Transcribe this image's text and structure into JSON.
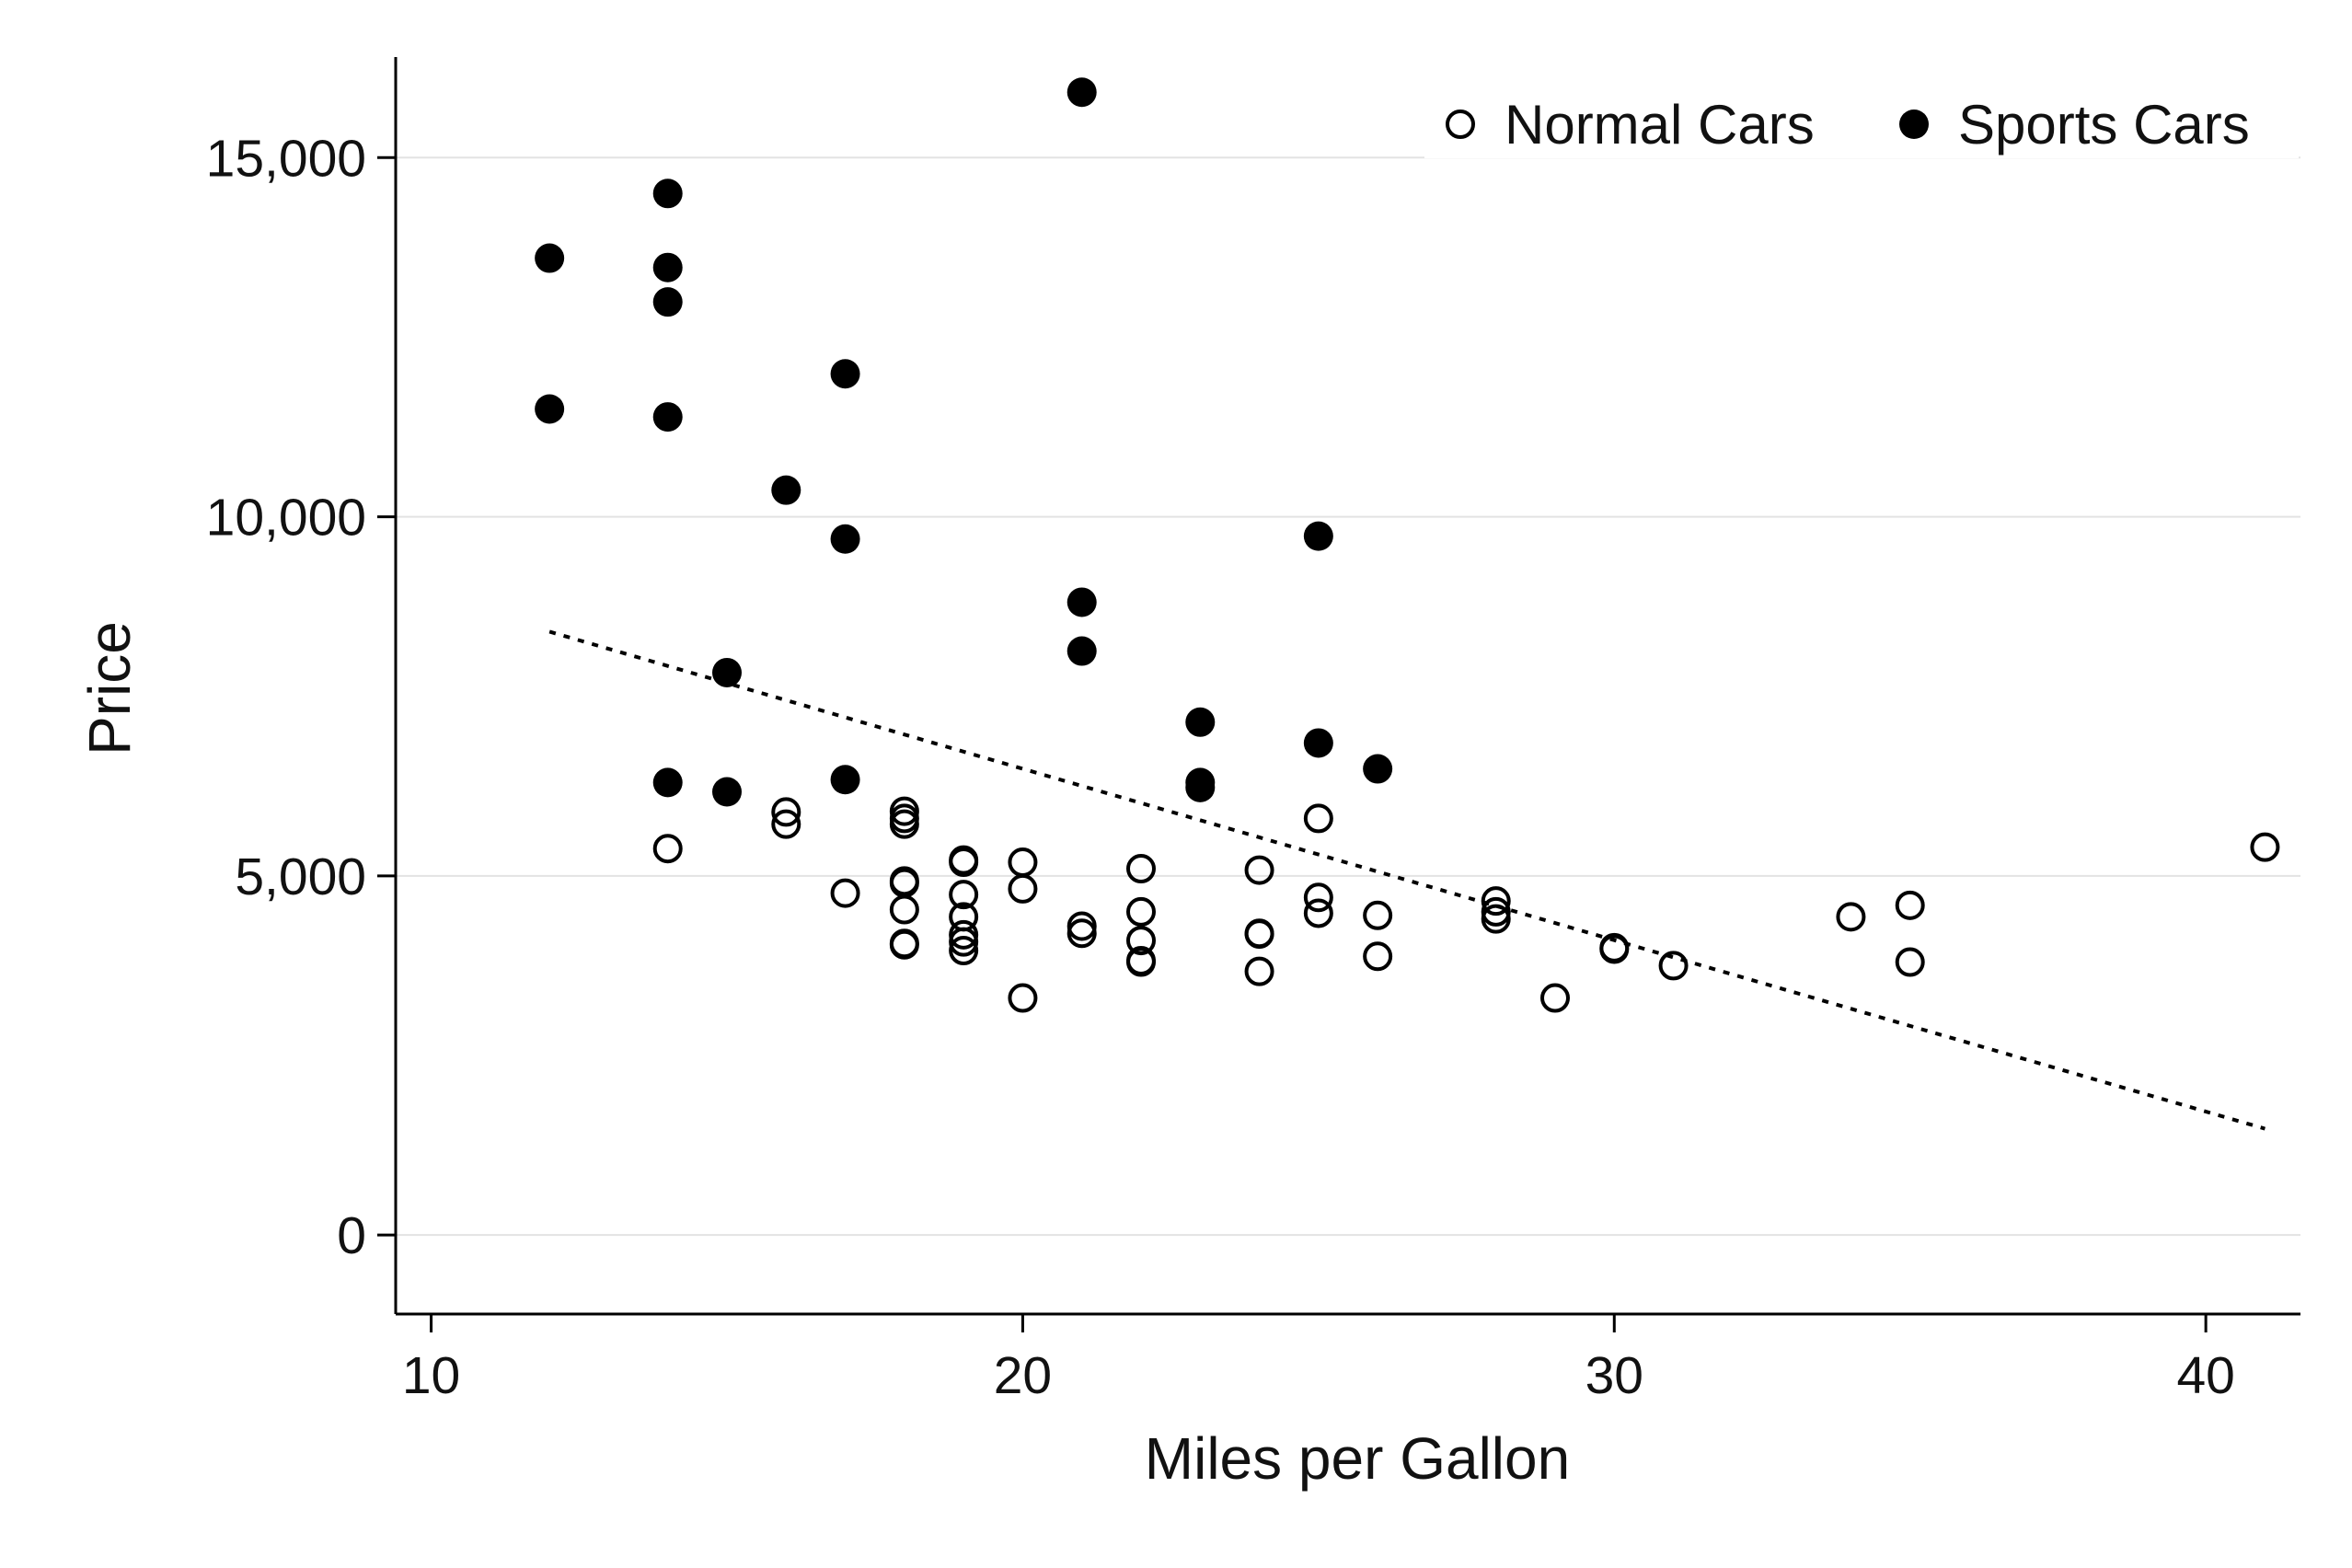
{
  "chart_data": {
    "type": "scatter",
    "xlabel": "Miles per Gallon",
    "ylabel": "Price",
    "xlim": [
      9.4,
      41.6
    ],
    "ylim": [
      -1100,
      16400
    ],
    "x_ticks": [
      10,
      20,
      30,
      40
    ],
    "x_tick_labels": [
      "10",
      "20",
      "30",
      "40"
    ],
    "y_ticks": [
      0,
      5000,
      10000,
      15000
    ],
    "y_tick_labels": [
      "0",
      "5,000",
      "10,000",
      "15,000"
    ],
    "grid": "horizontal",
    "legend_position": "top-right",
    "series": [
      {
        "name": "Normal Cars",
        "marker": "hollow-circle",
        "color": "#000000",
        "points": [
          [
            14,
            5380
          ],
          [
            16,
            5890
          ],
          [
            16,
            5720
          ],
          [
            17,
            4760
          ],
          [
            18,
            5900
          ],
          [
            18,
            5800
          ],
          [
            18,
            5720
          ],
          [
            18,
            4930
          ],
          [
            18,
            4900
          ],
          [
            18,
            4530
          ],
          [
            18,
            4060
          ],
          [
            18,
            4040
          ],
          [
            19,
            5220
          ],
          [
            19,
            5190
          ],
          [
            19,
            4740
          ],
          [
            19,
            4430
          ],
          [
            19,
            4180
          ],
          [
            19,
            4080
          ],
          [
            19,
            3960
          ],
          [
            20,
            5190
          ],
          [
            20,
            4820
          ],
          [
            20,
            3300
          ],
          [
            21,
            4300
          ],
          [
            21,
            4200
          ],
          [
            22,
            5100
          ],
          [
            22,
            4500
          ],
          [
            22,
            4100
          ],
          [
            22,
            3820
          ],
          [
            22,
            3800
          ],
          [
            24,
            5080
          ],
          [
            24,
            4200
          ],
          [
            24,
            4190
          ],
          [
            24,
            3670
          ],
          [
            25,
            5800
          ],
          [
            25,
            4700
          ],
          [
            25,
            4480
          ],
          [
            26,
            4450
          ],
          [
            26,
            3880
          ],
          [
            28,
            4650
          ],
          [
            28,
            4500
          ],
          [
            28,
            4400
          ],
          [
            29,
            3300
          ],
          [
            30,
            4000
          ],
          [
            30,
            3980
          ],
          [
            31,
            3750
          ],
          [
            34,
            4430
          ],
          [
            35,
            4590
          ],
          [
            35,
            3800
          ],
          [
            41,
            5400
          ]
        ]
      },
      {
        "name": "Sports Cars",
        "marker": "filled-circle",
        "color": "#000000",
        "points": [
          [
            12,
            13600
          ],
          [
            12,
            11500
          ],
          [
            14,
            14500
          ],
          [
            14,
            13470
          ],
          [
            14,
            12990
          ],
          [
            14,
            11390
          ],
          [
            14,
            6300
          ],
          [
            15,
            7830
          ],
          [
            15,
            6170
          ],
          [
            16,
            10370
          ],
          [
            17,
            11990
          ],
          [
            17,
            9690
          ],
          [
            17,
            6340
          ],
          [
            21,
            15910
          ],
          [
            21,
            8810
          ],
          [
            21,
            8130
          ],
          [
            23,
            7140
          ],
          [
            23,
            6300
          ],
          [
            23,
            6230
          ],
          [
            25,
            9730
          ],
          [
            25,
            6850
          ],
          [
            26,
            6490
          ]
        ]
      }
    ],
    "fit_line": {
      "style": "dotted",
      "color": "#000000",
      "x": [
        12,
        41
      ],
      "y": [
        8400,
        1480
      ]
    }
  }
}
